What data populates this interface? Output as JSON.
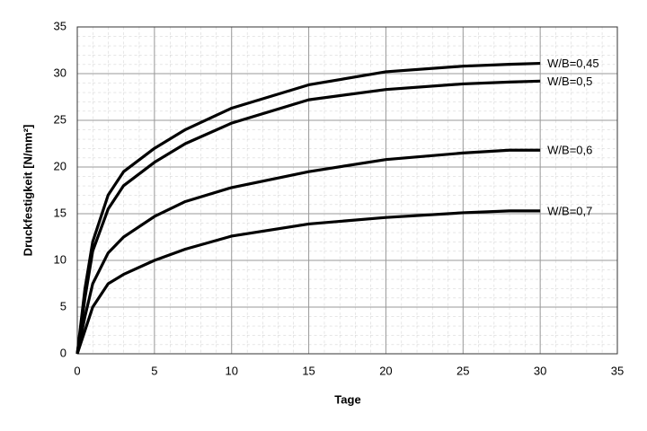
{
  "chart_data": {
    "type": "line",
    "x_label": "Tage",
    "y_label": "Druckfestigkeit [N/mm²]",
    "x": [
      0,
      0.5,
      1,
      2,
      3,
      5,
      7,
      10,
      15,
      20,
      25,
      28,
      30
    ],
    "series": [
      {
        "name": "W/B=0,45",
        "color": "#000000",
        "values": [
          0,
          7,
          12,
          17,
          19.5,
          22,
          24,
          26.3,
          28.8,
          30.2,
          30.8,
          31,
          31.1
        ]
      },
      {
        "name": "W/B=0,5",
        "color": "#000000",
        "values": [
          0,
          6,
          11,
          15.5,
          18,
          20.5,
          22.5,
          24.7,
          27.2,
          28.3,
          28.9,
          29.1,
          29.2
        ]
      },
      {
        "name": "W/B=0,6",
        "color": "#000000",
        "values": [
          0,
          4,
          7.5,
          10.8,
          12.5,
          14.7,
          16.3,
          17.8,
          19.5,
          20.8,
          21.5,
          21.8,
          21.8
        ]
      },
      {
        "name": "W/B=0,7",
        "color": "#000000",
        "values": [
          0,
          2.5,
          5,
          7.5,
          8.5,
          10,
          11.2,
          12.6,
          13.9,
          14.6,
          15.1,
          15.3,
          15.3
        ]
      }
    ],
    "xlim": [
      0,
      35
    ],
    "xticks": [
      0,
      5,
      10,
      15,
      20,
      25,
      30,
      35
    ],
    "ylim": [
      0,
      35
    ],
    "yticks": [
      0,
      5,
      10,
      15,
      20,
      25,
      30,
      35
    ],
    "grid": true
  }
}
